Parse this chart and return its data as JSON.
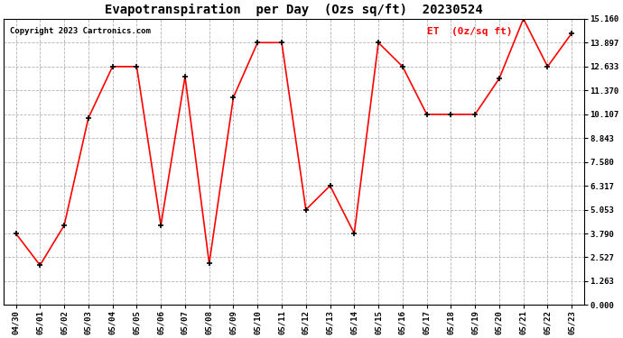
{
  "title": "Evapotranspiration  per Day  (Ozs sq/ft)  20230524",
  "copyright": "Copyright 2023 Cartronics.com",
  "legend_label": "ET  (0z/sq ft)",
  "dates": [
    "04/30",
    "05/01",
    "05/02",
    "05/03",
    "05/04",
    "05/05",
    "05/06",
    "05/07",
    "05/08",
    "05/09",
    "05/10",
    "05/11",
    "05/12",
    "05/13",
    "05/14",
    "05/15",
    "05/16",
    "05/17",
    "05/18",
    "05/19",
    "05/20",
    "05/21",
    "05/22",
    "05/23"
  ],
  "values": [
    3.79,
    2.11,
    4.22,
    9.9,
    12.63,
    12.63,
    4.22,
    12.1,
    2.2,
    11.0,
    13.9,
    13.9,
    5.05,
    6.32,
    3.79,
    13.9,
    12.63,
    10.1,
    10.1,
    10.1,
    12.0,
    15.16,
    12.63,
    14.4
  ],
  "line_color": "red",
  "marker_color": "black",
  "background_color": "#ffffff",
  "grid_color": "#aaaaaa",
  "yticks": [
    0.0,
    1.263,
    2.527,
    3.79,
    5.053,
    6.317,
    7.58,
    8.843,
    10.107,
    11.37,
    12.633,
    13.897,
    15.16
  ],
  "ylim": [
    0.0,
    15.16
  ],
  "title_fontsize": 10,
  "copyright_fontsize": 6.5,
  "legend_fontsize": 8,
  "tick_fontsize": 6.5
}
